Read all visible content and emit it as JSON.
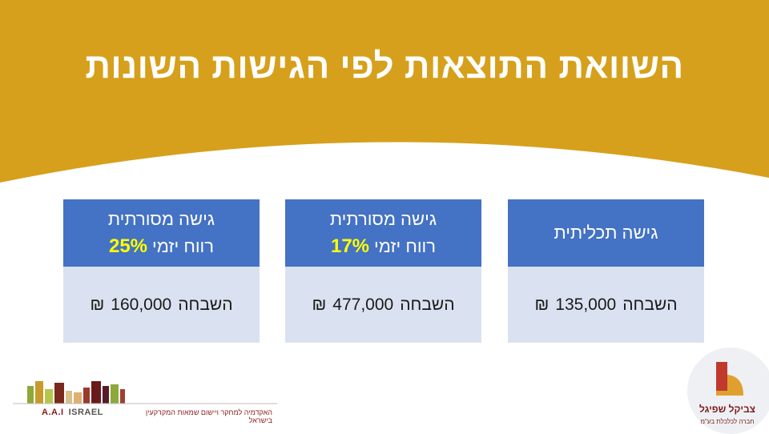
{
  "title": "השוואת התוצאות לפי הגישות השונות",
  "colors": {
    "header": "#d6a01c",
    "card_header": "#4472c4",
    "card_body": "#dae1f0",
    "highlight": "#ffff00"
  },
  "cards": [
    {
      "heading": "גישה תכליתית",
      "profit_pct": "",
      "profit_label": "",
      "gain_label": "השבחה",
      "gain_value": "135,000",
      "currency": "₪"
    },
    {
      "heading": "גישה מסורתית",
      "profit_pct": "17%",
      "profit_label": "רווח יזמי",
      "gain_label": "השבחה",
      "gain_value": "477,000",
      "currency": "₪"
    },
    {
      "heading": "גישה מסורתית",
      "profit_pct": "25%",
      "profit_label": "רווח יזמי",
      "gain_label": "השבחה",
      "gain_value": "160,000",
      "currency": "₪"
    }
  ],
  "logos": {
    "left": {
      "brand": "A.A.I",
      "country": "ISRAEL",
      "tagline": "האקדמיה למחקר ויישום שמאות המקרקעין בישראל"
    },
    "right": {
      "name": "צביקל שפיגל",
      "tagline": "חברה לכלכלת בע\"מ"
    }
  }
}
